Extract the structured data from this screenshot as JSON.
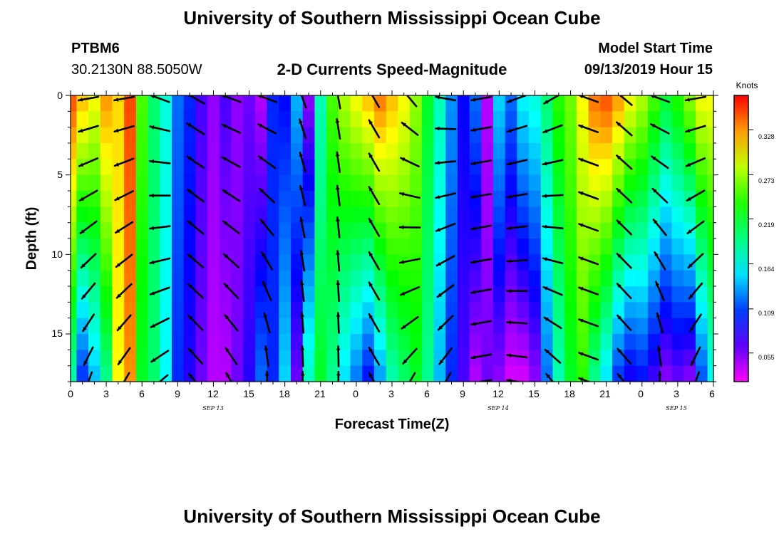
{
  "header": {
    "title": "University of Southern Mississippi Ocean Cube",
    "station_id": "PTBM6",
    "station_coords": "30.2130N 88.5050W",
    "plot_title": "2-D Currents Speed-Magnitude",
    "model_start_label": "Model Start Time",
    "model_start_value": "09/13/2019 Hour 15"
  },
  "footer": {
    "title": "University of Southern Mississippi Ocean Cube"
  },
  "chart_data": {
    "type": "heatmap",
    "title": "2-D Currents Speed-Magnitude",
    "xlabel": "Forecast Time(Z)",
    "ylabel": "Depth (ft)",
    "x_tick_labels": [
      "0",
      "3",
      "6",
      "9",
      "12",
      "15",
      "18",
      "21",
      "0",
      "3",
      "6",
      "9",
      "12",
      "15",
      "18",
      "21",
      "0",
      "3",
      "6"
    ],
    "x_date_labels": [
      "SEP 13",
      "SEP 14",
      "SEP 15"
    ],
    "xlim_hours": [
      0,
      54
    ],
    "date_label_hours": [
      12,
      36,
      51
    ],
    "y_tick_labels": [
      "0",
      "5",
      "10",
      "15"
    ],
    "ylim_ft": [
      0,
      18
    ],
    "colorbar": {
      "label": "Knots",
      "tick_labels": [
        "0.328",
        "0.273",
        "0.219",
        "0.164",
        "0.109",
        "0.055"
      ],
      "tick_values": [
        0.328,
        0.273,
        0.219,
        0.164,
        0.109,
        0.055
      ],
      "range": [
        0.02,
        0.37
      ]
    },
    "speed_profile_hours": [
      0,
      1,
      2,
      3,
      4,
      5,
      6,
      7,
      8,
      9,
      10,
      11,
      12,
      13,
      14,
      15,
      16,
      17,
      18,
      19,
      20,
      21,
      22,
      23,
      24,
      25,
      26,
      27,
      28,
      29,
      30,
      31,
      32,
      33,
      34,
      35,
      36,
      37,
      38,
      39,
      40,
      41,
      42,
      43,
      44,
      45,
      46,
      47,
      48,
      49,
      50,
      51,
      52,
      53,
      54
    ],
    "speed_surface_knots": [
      0.35,
      0.32,
      0.3,
      0.33,
      0.31,
      0.35,
      0.25,
      0.2,
      0.17,
      0.12,
      0.1,
      0.07,
      0.05,
      0.07,
      0.05,
      0.06,
      0.04,
      0.1,
      0.09,
      0.14,
      0.05,
      0.18,
      0.25,
      0.28,
      0.3,
      0.32,
      0.34,
      0.32,
      0.3,
      0.27,
      0.22,
      0.18,
      0.13,
      0.09,
      0.12,
      0.04,
      0.15,
      0.12,
      0.16,
      0.17,
      0.2,
      0.24,
      0.26,
      0.3,
      0.34,
      0.35,
      0.33,
      0.3,
      0.28,
      0.25,
      0.22,
      0.24,
      0.27,
      0.3,
      0.3
    ],
    "speed_bottom_knots": [
      0.18,
      0.1,
      0.14,
      0.19,
      0.3,
      0.33,
      0.22,
      0.2,
      0.16,
      0.1,
      0.08,
      0.06,
      0.04,
      0.04,
      0.06,
      0.08,
      0.12,
      0.1,
      0.15,
      0.06,
      0.18,
      0.22,
      0.19,
      0.15,
      0.12,
      0.09,
      0.13,
      0.18,
      0.2,
      0.22,
      0.19,
      0.14,
      0.1,
      0.07,
      0.04,
      0.06,
      0.05,
      0.03,
      0.03,
      0.05,
      0.12,
      0.18,
      0.22,
      0.24,
      0.19,
      0.15,
      0.1,
      0.08,
      0.09,
      0.07,
      0.05,
      0.06,
      0.05,
      0.11,
      0.16
    ],
    "vector_time_hours": [
      1.5,
      4.5,
      7.5,
      10.5,
      13.5,
      16.5,
      19.5,
      22.5,
      25.5,
      28.5,
      31.5,
      34.5,
      37.5,
      40.5,
      43.5,
      46.5,
      49.5,
      52.5
    ],
    "vector_depth_ft": [
      0.2,
      2.1,
      4.2,
      6.3,
      8.3,
      10.4,
      12.3,
      14.3,
      16.4,
      18.0
    ],
    "vector_surface_direction_deg": [
      190,
      190,
      160,
      150,
      160,
      160,
      110,
      100,
      120,
      130,
      170,
      190,
      200,
      210,
      160,
      140,
      160,
      190
    ],
    "vector_bottom_direction_deg": [
      250,
      240,
      220,
      130,
      120,
      90,
      90,
      90,
      120,
      240,
      240,
      190,
      170,
      130,
      160,
      130,
      90,
      250
    ]
  }
}
